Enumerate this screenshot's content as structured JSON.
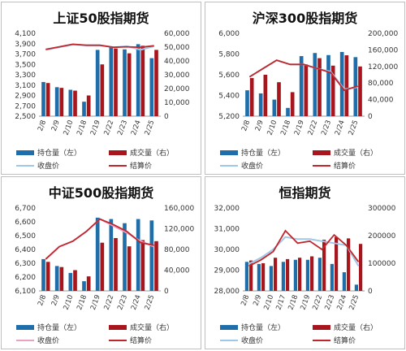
{
  "colors": {
    "position": "#1f6ea9",
    "volume": "#a6161c",
    "close_line": "#9fc8e8",
    "settle_line": "#c0272d",
    "close_line_pink": "#e7a3c4"
  },
  "legend": {
    "position": "持仓量（左）",
    "volume": "成交量（右）",
    "close": "收盘价",
    "settle": "结算价"
  },
  "chart_data": [
    {
      "type": "bar",
      "title": "上证50股指期货",
      "categories": [
        "2/8",
        "2/9",
        "2/10",
        "2/18",
        "2/19",
        "2/22",
        "2/23",
        "2/24",
        "2/25"
      ],
      "left_axis": {
        "min": 2500,
        "max": 4100,
        "ticks": [
          "2,500",
          "2,700",
          "2,900",
          "3,100",
          "3,300",
          "3,500",
          "3,700",
          "3,900",
          "4,100"
        ]
      },
      "right_axis": {
        "min": 0,
        "max": 60000,
        "ticks": [
          "0",
          "10,000",
          "20,000",
          "30,000",
          "40,000",
          "50,000",
          "60,000"
        ]
      },
      "series": [
        {
          "name": "持仓量（左）",
          "axis": "left",
          "values": [
            3160,
            3060,
            3010,
            2780,
            3780,
            3840,
            3790,
            3890,
            3620
          ]
        },
        {
          "name": "成交量（右）",
          "axis": "right",
          "values": [
            24000,
            20500,
            18500,
            15000,
            37500,
            49000,
            45500,
            51000,
            48000
          ]
        },
        {
          "name": "收盘价",
          "axis": "left",
          "kind": "line",
          "values": [
            3780,
            3830,
            3880,
            3870,
            3870,
            3830,
            3850,
            3780,
            3850
          ]
        },
        {
          "name": "结算价",
          "axis": "left",
          "kind": "line",
          "values": [
            3790,
            3840,
            3890,
            3870,
            3870,
            3830,
            3840,
            3830,
            3860
          ]
        }
      ]
    },
    {
      "type": "bar",
      "title": "沪深300股指期货",
      "categories": [
        "2/8",
        "2/9",
        "2/10",
        "2/18",
        "2/19",
        "2/22",
        "2/23",
        "2/24",
        "2/25"
      ],
      "left_axis": {
        "min": 5200,
        "max": 6000,
        "ticks": [
          "5,200",
          "5,400",
          "5,600",
          "5,800",
          "6,000"
        ]
      },
      "right_axis": {
        "min": 0,
        "max": 200000,
        "ticks": [
          "0",
          "40,000",
          "80,000",
          "120,000",
          "160,000",
          "200,000"
        ]
      },
      "series": [
        {
          "name": "持仓量（左）",
          "axis": "left",
          "values": [
            5450,
            5420,
            5360,
            5280,
            5780,
            5810,
            5790,
            5820,
            5770
          ]
        },
        {
          "name": "成交量（右）",
          "axis": "right",
          "values": [
            92000,
            100000,
            82000,
            58000,
            125000,
            140000,
            122000,
            147000,
            120000
          ]
        },
        {
          "name": "收盘价",
          "axis": "left",
          "kind": "line",
          "values": [
            5580,
            5660,
            5740,
            5700,
            5700,
            5660,
            5630,
            5460,
            5480
          ]
        },
        {
          "name": "结算价",
          "axis": "left",
          "kind": "line",
          "values": [
            5580,
            5660,
            5740,
            5700,
            5700,
            5660,
            5620,
            5450,
            5490
          ]
        }
      ]
    },
    {
      "type": "bar",
      "title": "中证500股指期货",
      "categories": [
        "2/8",
        "2/9",
        "2/10",
        "2/18",
        "2/19",
        "2/22",
        "2/23",
        "2/24",
        "2/25"
      ],
      "left_axis": {
        "min": 6100,
        "max": 6700,
        "ticks": [
          "6,100",
          "6,200",
          "6,300",
          "6,400",
          "6,500",
          "6,600",
          "6,700"
        ]
      },
      "right_axis": {
        "min": 0,
        "max": 160000,
        "ticks": [
          "0",
          "40,000",
          "80,000",
          "120,000",
          "160,000"
        ]
      },
      "series": [
        {
          "name": "持仓量（左）",
          "axis": "left",
          "values": [
            6330,
            6280,
            6230,
            6170,
            6630,
            6620,
            6590,
            6620,
            6610
          ]
        },
        {
          "name": "成交量（右）",
          "axis": "right",
          "values": [
            56000,
            46000,
            40000,
            28000,
            93000,
            102000,
            86000,
            98000,
            96000
          ]
        },
        {
          "name": "收盘价",
          "axis": "left",
          "kind": "line",
          "values": [
            6330,
            6420,
            6460,
            6530,
            6620,
            6570,
            6520,
            6460,
            6420
          ]
        },
        {
          "name": "结算价",
          "axis": "left",
          "kind": "line",
          "values": [
            6330,
            6420,
            6460,
            6530,
            6620,
            6580,
            6530,
            6450,
            6430
          ]
        }
      ]
    },
    {
      "type": "bar",
      "title": "恒指期货",
      "categories": [
        "2/8",
        "2/9",
        "2/10",
        "2/17",
        "2/18",
        "2/19",
        "2/22",
        "2/23",
        "2/24",
        "2/25"
      ],
      "left_axis": {
        "min": 28000,
        "max": 32000,
        "ticks": [
          "28,000",
          "29,000",
          "30,000",
          "31,000",
          "32,000"
        ]
      },
      "right_axis": {
        "min": 0,
        "max": 300000,
        "ticks": [
          "0",
          "100000",
          "200000",
          "300000"
        ]
      },
      "series": [
        {
          "name": "持仓量（左）",
          "axis": "left",
          "values": [
            29400,
            29300,
            29200,
            29400,
            29500,
            29500,
            29600,
            29300,
            28900,
            28300
          ]
        },
        {
          "name": "成交量（右）",
          "axis": "right",
          "values": [
            110000,
            100000,
            120000,
            115000,
            120000,
            125000,
            185000,
            195000,
            190000,
            170000
          ]
        },
        {
          "name": "收盘价",
          "axis": "left",
          "kind": "line",
          "values": [
            29300,
            29600,
            30000,
            30600,
            30500,
            30500,
            30400,
            30300,
            30200,
            29200
          ]
        },
        {
          "name": "结算价",
          "axis": "left",
          "kind": "line",
          "values": [
            29200,
            29500,
            29900,
            30900,
            30300,
            30400,
            30000,
            30700,
            30200,
            29400
          ]
        }
      ]
    }
  ]
}
